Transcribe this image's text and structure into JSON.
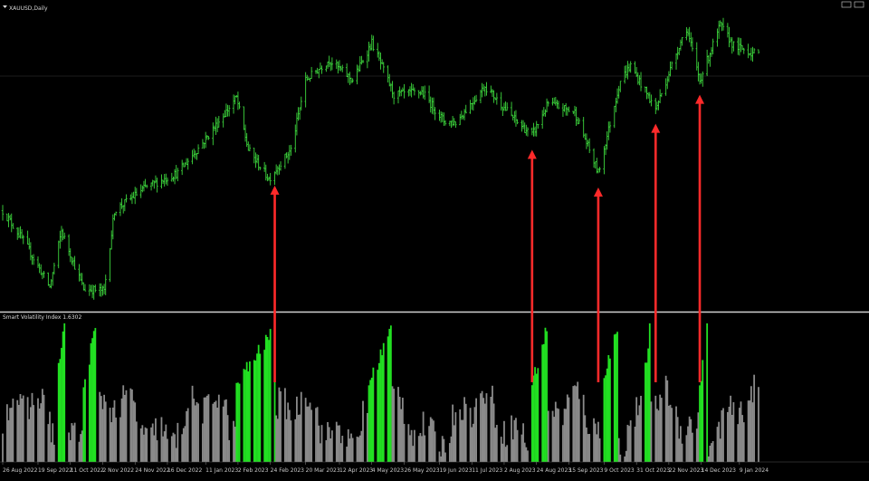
{
  "window": {
    "title": "XAUUSD,Daily",
    "indicator_title": "Smart Volatility Index 1.6302"
  },
  "colors": {
    "background": "#000000",
    "price_bars": "#3dd63d",
    "volatility_high": "#22e022",
    "volatility_normal": "#8a8a8a",
    "arrow": "#ff2a2a",
    "separator": "#d0d0d0",
    "gridline": "#3a3a3a"
  },
  "icons": {
    "window_menu": "triangle-down-icon",
    "window_controls": "window-controls-icon"
  },
  "chart_data": {
    "type": "bar",
    "price_panel": {
      "series": "XAUUSD daily OHLC",
      "anchors": [
        {
          "date": "2022-08-26",
          "close": 1760
        },
        {
          "date": "2022-09-10",
          "close": 1705
        },
        {
          "date": "2022-09-27",
          "close": 1628
        },
        {
          "date": "2022-10-05",
          "close": 1725
        },
        {
          "date": "2022-10-20",
          "close": 1625
        },
        {
          "date": "2022-11-03",
          "close": 1622
        },
        {
          "date": "2022-11-10",
          "close": 1760
        },
        {
          "date": "2022-12-01",
          "close": 1800
        },
        {
          "date": "2022-12-23",
          "close": 1825
        },
        {
          "date": "2023-01-10",
          "close": 1880
        },
        {
          "date": "2023-02-01",
          "close": 1955
        },
        {
          "date": "2023-02-09",
          "close": 1865
        },
        {
          "date": "2023-02-23",
          "close": 1815
        },
        {
          "date": "2023-03-01",
          "close": 1835
        },
        {
          "date": "2023-03-10",
          "close": 1865
        },
        {
          "date": "2023-03-20",
          "close": 1985
        },
        {
          "date": "2023-04-05",
          "close": 2020
        },
        {
          "date": "2023-04-21",
          "close": 1985
        },
        {
          "date": "2023-05-04",
          "close": 2050
        },
        {
          "date": "2023-05-19",
          "close": 1960
        },
        {
          "date": "2023-06-07",
          "close": 1965
        },
        {
          "date": "2023-06-22",
          "close": 1915
        },
        {
          "date": "2023-06-30",
          "close": 1912
        },
        {
          "date": "2023-07-20",
          "close": 1975
        },
        {
          "date": "2023-08-10",
          "close": 1915
        },
        {
          "date": "2023-08-21",
          "close": 1890
        },
        {
          "date": "2023-09-01",
          "close": 1945
        },
        {
          "date": "2023-09-19",
          "close": 1930
        },
        {
          "date": "2023-10-05",
          "close": 1825
        },
        {
          "date": "2023-10-20",
          "close": 1985
        },
        {
          "date": "2023-10-27",
          "close": 2010
        },
        {
          "date": "2023-11-13",
          "close": 1935
        },
        {
          "date": "2023-11-29",
          "close": 2045
        },
        {
          "date": "2023-12-04",
          "close": 2075
        },
        {
          "date": "2023-12-13",
          "close": 1985
        },
        {
          "date": "2023-12-27",
          "close": 2080
        },
        {
          "date": "2024-01-05",
          "close": 2045
        },
        {
          "date": "2024-01-20",
          "close": 2030
        }
      ],
      "ylim": [
        1600,
        2100
      ]
    },
    "volatility_panel": {
      "title": "Smart Volatility Index 1.6302",
      "high_volatility_windows": [
        {
          "from": "2022-10-01",
          "to": "2022-10-07"
        },
        {
          "from": "2022-10-20",
          "to": "2022-10-28"
        },
        {
          "from": "2023-02-01",
          "to": "2023-02-27"
        },
        {
          "from": "2023-05-02",
          "to": "2023-05-17"
        },
        {
          "from": "2023-08-21",
          "to": "2023-08-31"
        },
        {
          "from": "2023-10-07",
          "to": "2023-10-18"
        },
        {
          "from": "2023-11-05",
          "to": "2023-11-09"
        },
        {
          "from": "2023-12-13",
          "to": "2023-12-18"
        }
      ],
      "ylim": [
        0,
        100
      ]
    },
    "arrows": [
      {
        "date": "2023-02-27",
        "label": "low"
      },
      {
        "date": "2023-08-21",
        "label": "low"
      },
      {
        "date": "2023-10-05",
        "label": "low"
      },
      {
        "date": "2023-11-13",
        "label": "low"
      },
      {
        "date": "2023-12-13",
        "label": "low"
      }
    ],
    "x_ticks": [
      {
        "label": "26 Aug 2022",
        "date": "2022-08-26"
      },
      {
        "label": "19 Sep 2022",
        "date": "2022-09-19"
      },
      {
        "label": "11 Oct 2022",
        "date": "2022-10-11"
      },
      {
        "label": "2 Nov 2022",
        "date": "2022-11-02"
      },
      {
        "label": "24 Nov 2022",
        "date": "2022-11-24"
      },
      {
        "label": "16 Dec 2022",
        "date": "2022-12-16"
      },
      {
        "label": "11 Jan 2023",
        "date": "2023-01-11"
      },
      {
        "label": "2 Feb 2023",
        "date": "2023-02-02"
      },
      {
        "label": "24 Feb 2023",
        "date": "2023-02-24"
      },
      {
        "label": "20 Mar 2023",
        "date": "2023-03-20"
      },
      {
        "label": "12 Apr 2023",
        "date": "2023-04-12"
      },
      {
        "label": "4 May 2023",
        "date": "2023-05-04"
      },
      {
        "label": "26 May 2023",
        "date": "2023-05-26"
      },
      {
        "label": "19 Jun 2023",
        "date": "2023-06-19"
      },
      {
        "label": "11 Jul 2023",
        "date": "2023-07-11"
      },
      {
        "label": "2 Aug 2023",
        "date": "2023-08-02"
      },
      {
        "label": "24 Aug 2023",
        "date": "2023-08-24"
      },
      {
        "label": "15 Sep 2023",
        "date": "2023-09-15"
      },
      {
        "label": "9 Oct 2023",
        "date": "2023-10-09"
      },
      {
        "label": "31 Oct 2023",
        "date": "2023-10-31"
      },
      {
        "label": "22 Nov 2023",
        "date": "2023-11-22"
      },
      {
        "label": "14 Dec 2023",
        "date": "2023-12-14"
      },
      {
        "label": "9 Jan 2024",
        "date": "2024-01-09"
      }
    ],
    "xlim": [
      "2022-08-26",
      "2024-01-22"
    ]
  }
}
